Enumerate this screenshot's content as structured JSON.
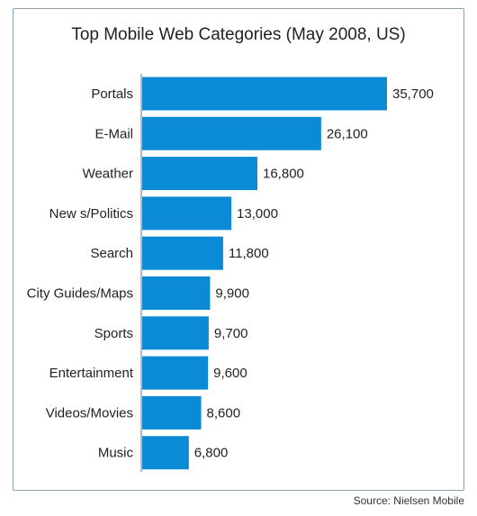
{
  "chart_data": {
    "type": "bar",
    "orientation": "horizontal",
    "title": "Top Mobile Web Categories (May 2008, US)",
    "categories": [
      "Portals",
      "E-Mail",
      "Weather",
      "New s/Politics",
      "Search",
      "City Guides/Maps",
      "Sports",
      "Entertainment",
      "Videos/Movies",
      "Music"
    ],
    "values": [
      35700,
      26100,
      16800,
      13000,
      11800,
      9900,
      9700,
      9600,
      8600,
      6800
    ],
    "value_labels": [
      "35,700",
      "26,100",
      "16,800",
      "13,000",
      "11,800",
      "9,900",
      "9,700",
      "9,600",
      "8,600",
      "6,800"
    ],
    "xlabel": "",
    "ylabel": "",
    "xlim": [
      0,
      35700
    ],
    "grid": false,
    "legend": "none",
    "bar_color": "#0b8bd6"
  },
  "source": "Source: Nielsen Mobile"
}
